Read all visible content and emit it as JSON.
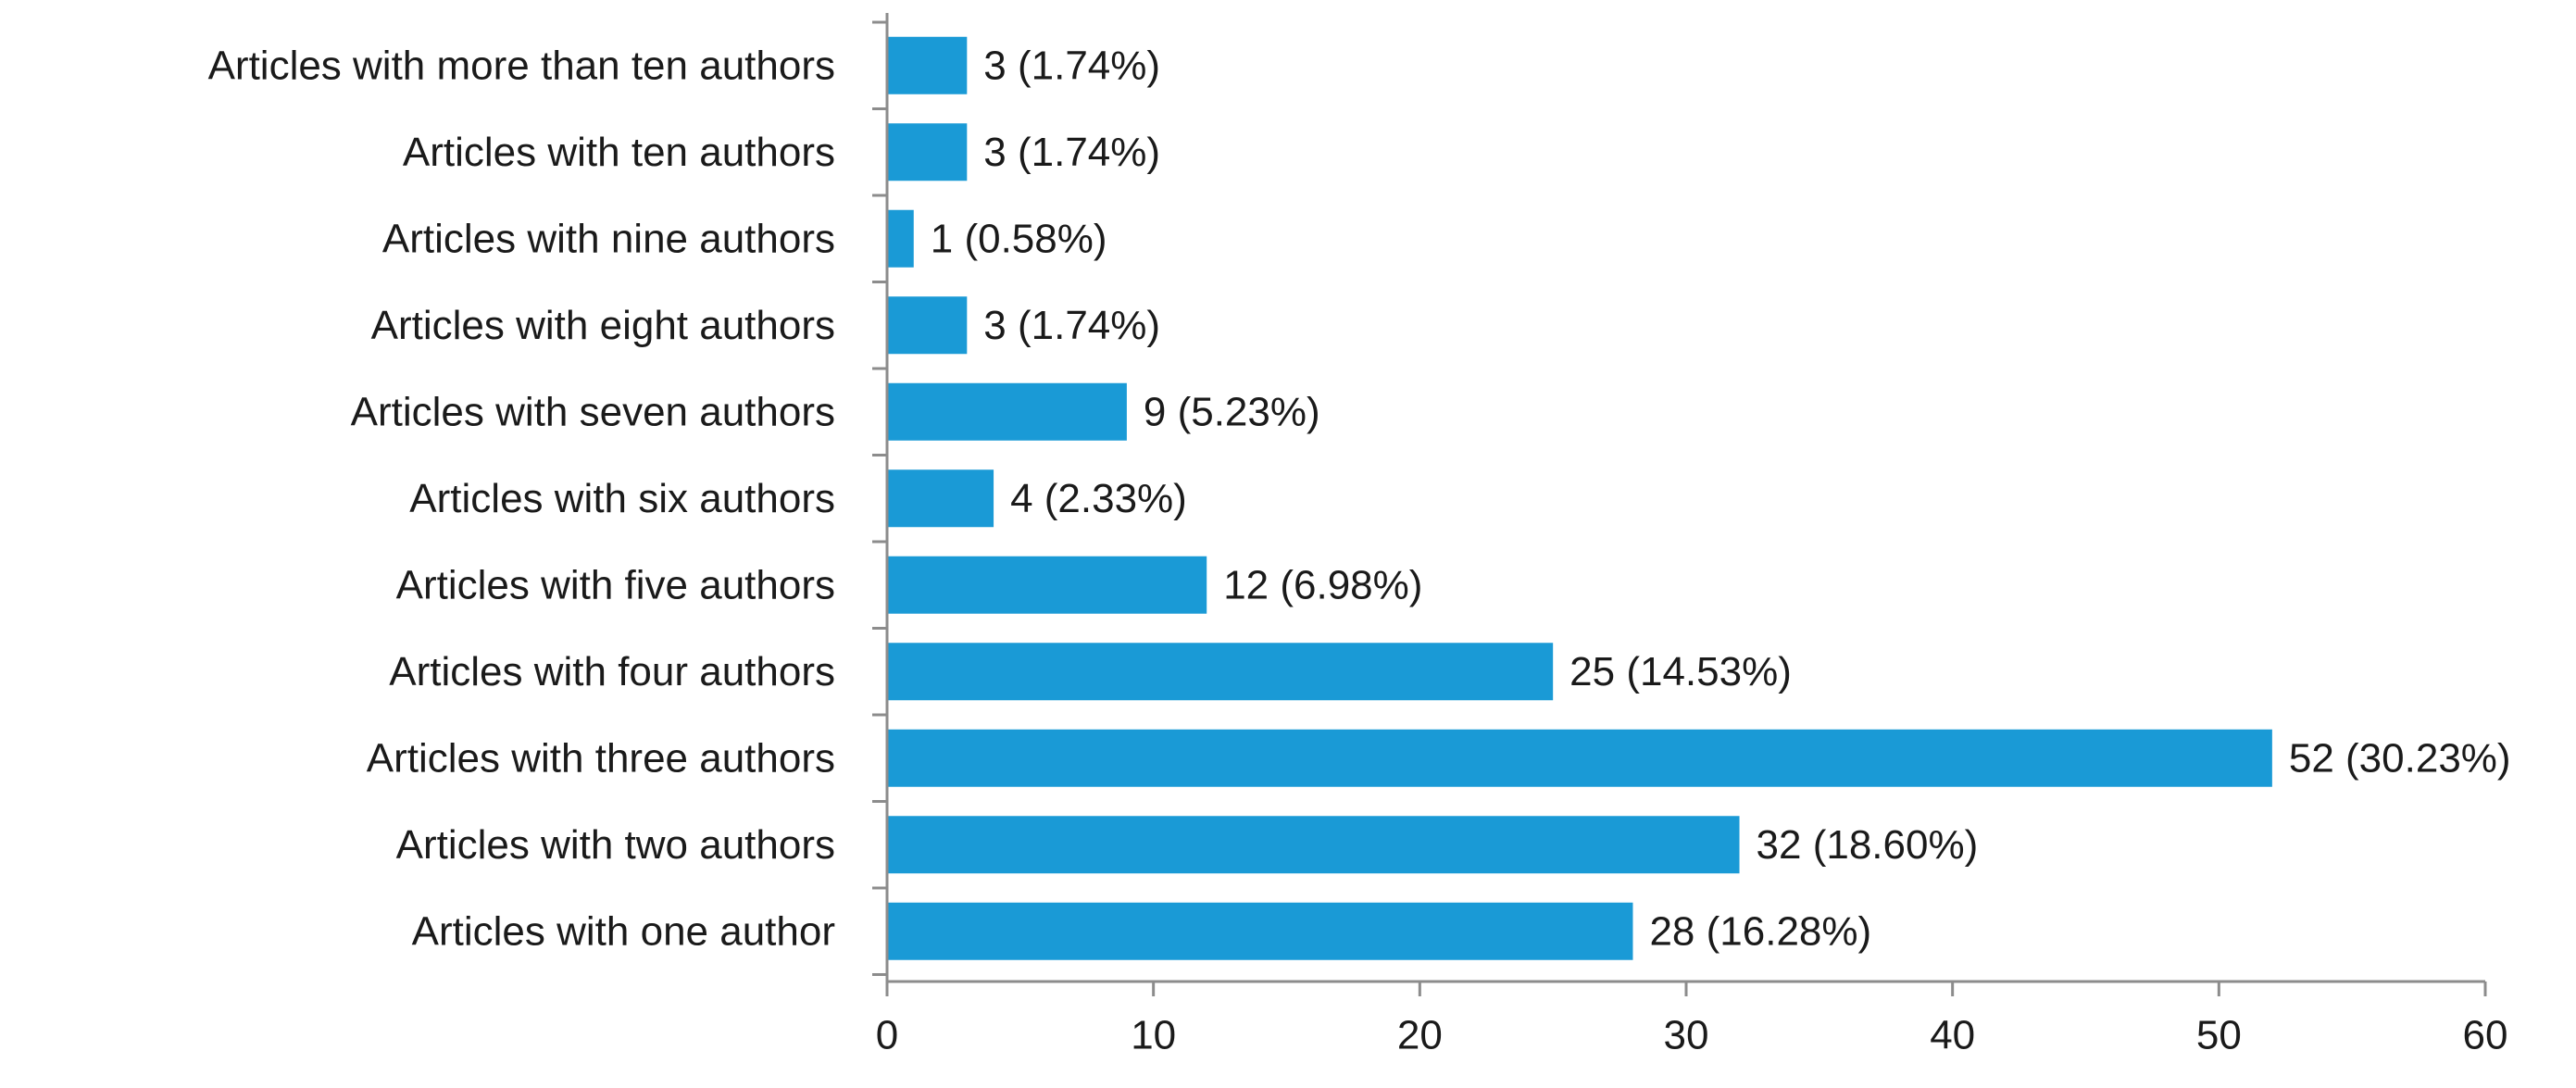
{
  "chart_data": {
    "type": "bar",
    "orientation": "horizontal",
    "title": "",
    "xlabel": "",
    "ylabel": "",
    "categories": [
      "Articles with more than ten authors",
      "Articles with ten authors",
      "Articles with nine authors",
      "Articles with eight authors",
      "Articles with seven authors",
      "Articles with six authors",
      "Articles with five authors",
      "Articles with four authors",
      "Articles with three authors",
      "Articles with two authors",
      "Articles with one author"
    ],
    "values": [
      3,
      3,
      1,
      3,
      9,
      4,
      12,
      25,
      52,
      32,
      28
    ],
    "data_labels": [
      "3 (1.74%)",
      "3 (1.74%)",
      "1 (0.58%)",
      "3 (1.74%)",
      "9 (5.23%)",
      "4 (2.33%)",
      "12 (6.98%)",
      "25 (14.53%)",
      "52 (30.23%)",
      "32 (18.60%)",
      "28 (16.28%)"
    ],
    "xlim": [
      0,
      60
    ],
    "xticks": [
      0,
      10,
      20,
      30,
      40,
      50,
      60
    ],
    "xtick_labels": [
      "0",
      "10",
      "20",
      "30",
      "40",
      "50",
      "60"
    ],
    "grid": false,
    "legend": "none",
    "bar_color": "#1a9ad6",
    "axis_color": "#8c8c8c",
    "text_color": "#1a1a1a"
  }
}
